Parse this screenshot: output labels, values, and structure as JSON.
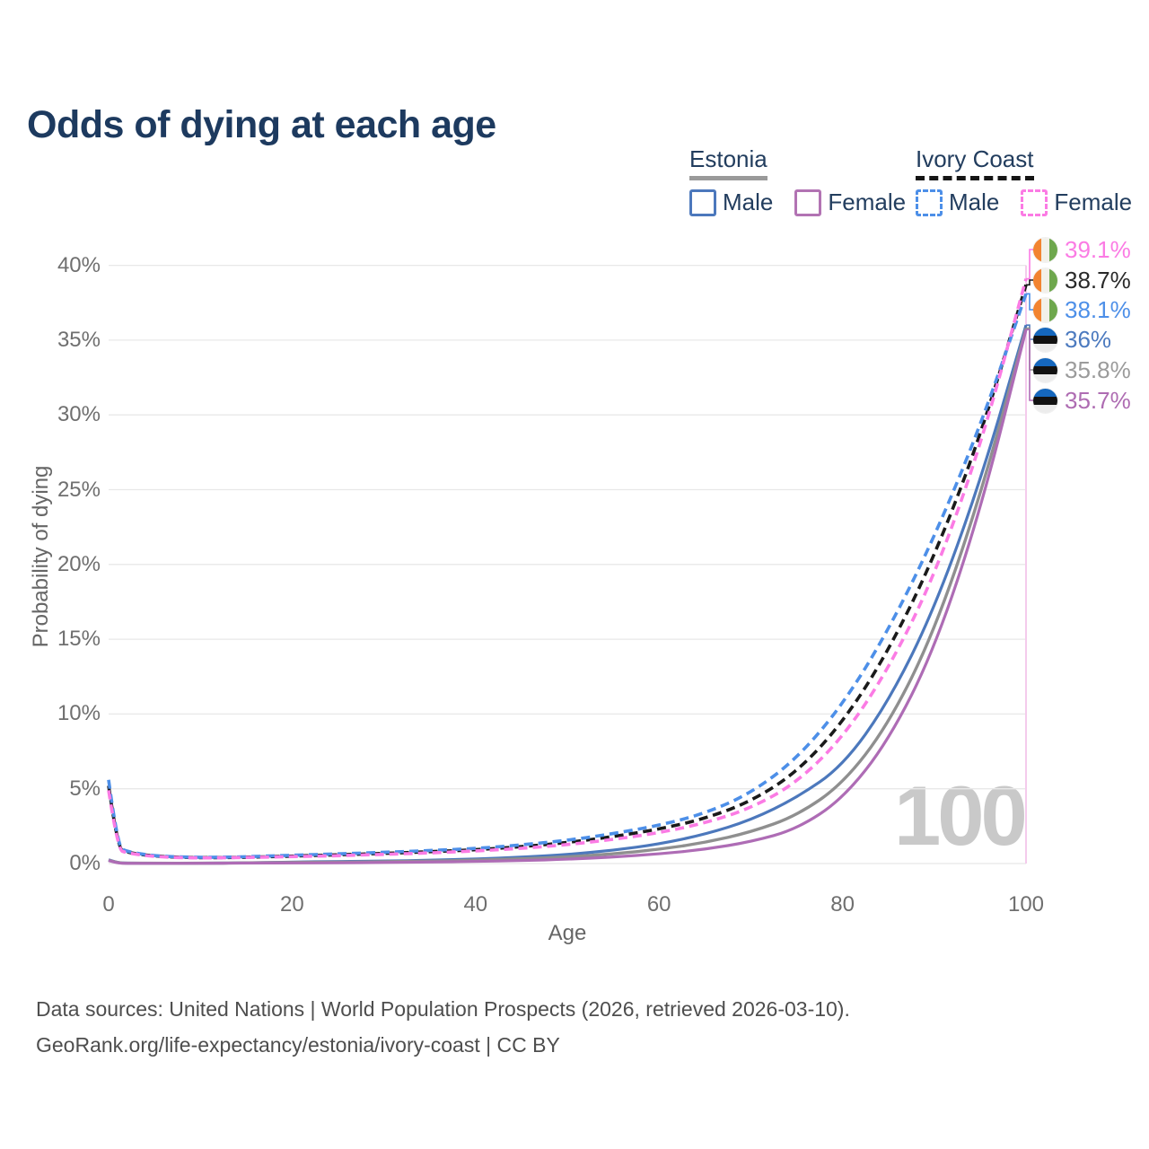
{
  "title": "Odds of dying at each age",
  "watermark": "100",
  "legend": {
    "groups": [
      {
        "name": "Estonia",
        "line_style": "solid",
        "underline_color": "#9A9A9A",
        "items": [
          {
            "label": "Male",
            "color": "#4C78BC",
            "dashed": false
          },
          {
            "label": "Female",
            "color": "#B273B3",
            "dashed": false
          }
        ]
      },
      {
        "name": "Ivory Coast",
        "line_style": "dashed",
        "underline_color": "#151515",
        "items": [
          {
            "label": "Male",
            "color": "#4D8FE8",
            "dashed": true
          },
          {
            "label": "Female",
            "color": "#FB7BE4",
            "dashed": true
          }
        ]
      }
    ]
  },
  "chart_data": {
    "type": "line",
    "title": "Odds of dying at each age",
    "xlabel": "Age",
    "ylabel": "Probability of dying",
    "xlim": [
      0,
      100
    ],
    "ylim": [
      0,
      40
    ],
    "xticks": [
      0,
      20,
      40,
      60,
      80,
      100
    ],
    "yticks": [
      0,
      5,
      10,
      15,
      20,
      25,
      30,
      35,
      40
    ],
    "ytick_suffix": "%",
    "grid": "horizontal",
    "highlighted_age": 100,
    "x": [
      0,
      1,
      2,
      5,
      10,
      15,
      20,
      25,
      30,
      35,
      40,
      45,
      50,
      55,
      60,
      65,
      70,
      75,
      80,
      85,
      90,
      95,
      100
    ],
    "series": [
      {
        "id": "estonia_male",
        "name": "Estonia Male",
        "color": "#4C78BC",
        "dashed": false,
        "width": 3.2,
        "values": [
          0.25,
          0.05,
          0.03,
          0.02,
          0.02,
          0.05,
          0.1,
          0.13,
          0.17,
          0.22,
          0.3,
          0.42,
          0.6,
          0.88,
          1.3,
          1.95,
          2.9,
          4.4,
          6.5,
          10.8,
          17.0,
          25.5,
          36.0
        ]
      },
      {
        "id": "estonia_average",
        "name": "Estonia (both sexes)",
        "color": "#8F8F8F",
        "dashed": false,
        "width": 3.4,
        "values": [
          0.22,
          0.04,
          0.03,
          0.02,
          0.02,
          0.04,
          0.07,
          0.09,
          0.12,
          0.16,
          0.22,
          0.31,
          0.44,
          0.64,
          0.95,
          1.4,
          2.1,
          3.2,
          5.3,
          9.3,
          15.5,
          24.5,
          35.8
        ]
      },
      {
        "id": "estonia_female",
        "name": "Estonia Female",
        "color": "#AE6CB5",
        "dashed": false,
        "width": 3.2,
        "values": [
          0.2,
          0.03,
          0.02,
          0.015,
          0.015,
          0.03,
          0.04,
          0.05,
          0.07,
          0.1,
          0.14,
          0.2,
          0.29,
          0.43,
          0.64,
          0.95,
          1.45,
          2.3,
          4.3,
          8.2,
          14.3,
          23.5,
          35.7
        ]
      },
      {
        "id": "ivory_coast_average",
        "name": "Ivory Coast (both sexes)",
        "color": "#1A1A1A",
        "dashed": true,
        "width": 3.6,
        "values": [
          5.2,
          1.0,
          0.75,
          0.48,
          0.38,
          0.42,
          0.5,
          0.58,
          0.68,
          0.79,
          0.92,
          1.13,
          1.4,
          1.8,
          2.3,
          3.0,
          4.15,
          6.1,
          9.4,
          14.2,
          20.5,
          28.5,
          38.7
        ]
      },
      {
        "id": "ivory_coast_male",
        "name": "Ivory Coast Male",
        "color": "#4D8FE8",
        "dashed": true,
        "width": 3.6,
        "values": [
          5.6,
          1.1,
          0.8,
          0.5,
          0.4,
          0.45,
          0.55,
          0.65,
          0.75,
          0.87,
          1.0,
          1.25,
          1.55,
          2.0,
          2.55,
          3.35,
          4.7,
          7.0,
          10.6,
          15.6,
          21.8,
          29.2,
          38.1
        ]
      },
      {
        "id": "ivory_coast_female",
        "name": "Ivory Coast Female",
        "color": "#FB7BE4",
        "dashed": true,
        "width": 3.6,
        "values": [
          4.9,
          0.95,
          0.7,
          0.45,
          0.36,
          0.4,
          0.46,
          0.52,
          0.61,
          0.71,
          0.84,
          1.01,
          1.26,
          1.61,
          2.06,
          2.7,
          3.7,
          5.4,
          8.4,
          13.0,
          19.2,
          27.8,
          39.1
        ]
      }
    ],
    "end_labels": [
      {
        "text": "39.1%",
        "color": "#FB7BE4",
        "flag": "ivory_coast",
        "series": "ivory_coast_female"
      },
      {
        "text": "38.7%",
        "color": "#2A2A2A",
        "flag": "ivory_coast",
        "series": "ivory_coast_average"
      },
      {
        "text": "38.1%",
        "color": "#4D8FE8",
        "flag": "ivory_coast",
        "series": "ivory_coast_male"
      },
      {
        "text": "36%",
        "color": "#4C7ABF",
        "flag": "estonia",
        "series": "estonia_male"
      },
      {
        "text": "35.8%",
        "color": "#9B9B9B",
        "flag": "estonia",
        "series": "estonia_average"
      },
      {
        "text": "35.7%",
        "color": "#AE6CB2",
        "flag": "estonia",
        "series": "estonia_female"
      }
    ]
  },
  "flags": {
    "ivory_coast": {
      "orange": "#F28430",
      "white": "#F2F0EA",
      "green": "#6EA74D"
    },
    "estonia": {
      "blue": "#1567BD",
      "black": "#121212",
      "white": "#ECECEC"
    }
  },
  "colors": {
    "grid": "#E8E8E8",
    "ruler": "#F4CBEC",
    "axis_text": "#6F6F6F",
    "watermark": "#C9C9C9"
  },
  "footer": {
    "line1": "Data sources: United Nations | World Population Prospects (2026, retrieved 2026-03-10).",
    "line2": "GeoRank.org/life-expectancy/estonia/ivory-coast | CC BY"
  }
}
